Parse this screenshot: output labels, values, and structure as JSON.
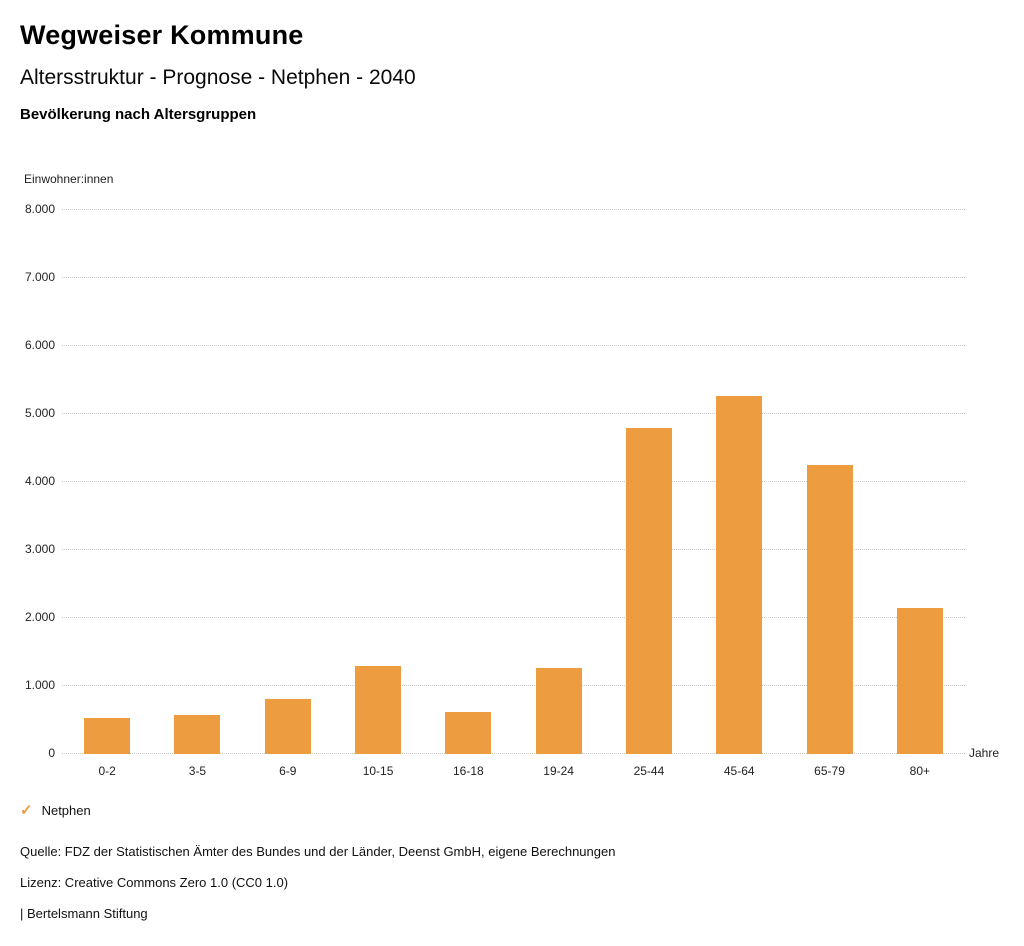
{
  "header": {
    "title": "Wegweiser Kommune",
    "subtitle": "Altersstruktur - Prognose - Netphen - 2040",
    "section_title": "Bevölkerung nach Altersgruppen"
  },
  "legend": {
    "check_icon": "✓",
    "label": "Netphen"
  },
  "footer": {
    "source": "Quelle: FDZ der Statistischen Ämter des Bundes und der Länder, Deenst GmbH, eigene Berechnungen",
    "license": "Lizenz: Creative Commons Zero 1.0 (CC0 1.0)",
    "brand": "| Bertelsmann Stiftung"
  },
  "colors": {
    "bar": "#ED9C40",
    "accent": "#ED9C40",
    "grid": "#c9c9c9"
  },
  "chart_data": {
    "type": "bar",
    "title": "Bevölkerung nach Altersgruppen",
    "subtitle": "Altersstruktur - Prognose - Netphen - 2040",
    "ylabel": "Einwohner:innen",
    "xlabel": "Jahre",
    "categories": [
      "0-2",
      "3-5",
      "6-9",
      "10-15",
      "16-18",
      "19-24",
      "25-44",
      "45-64",
      "65-79",
      "80+"
    ],
    "series": [
      {
        "name": "Netphen",
        "values": [
          530,
          580,
          810,
          1290,
          620,
          1270,
          4800,
          5270,
          4250,
          2140
        ]
      }
    ],
    "ylim": [
      0,
      8000
    ],
    "yticks": [
      {
        "value": 0,
        "label": "0"
      },
      {
        "value": 1000,
        "label": "1.000"
      },
      {
        "value": 2000,
        "label": "2.000"
      },
      {
        "value": 3000,
        "label": "3.000"
      },
      {
        "value": 4000,
        "label": "4.000"
      },
      {
        "value": 5000,
        "label": "5.000"
      },
      {
        "value": 6000,
        "label": "6.000"
      },
      {
        "value": 7000,
        "label": "7.000"
      },
      {
        "value": 8000,
        "label": "8.000"
      }
    ],
    "grid": "horizontal-dotted",
    "legend_position": "bottom-left"
  }
}
